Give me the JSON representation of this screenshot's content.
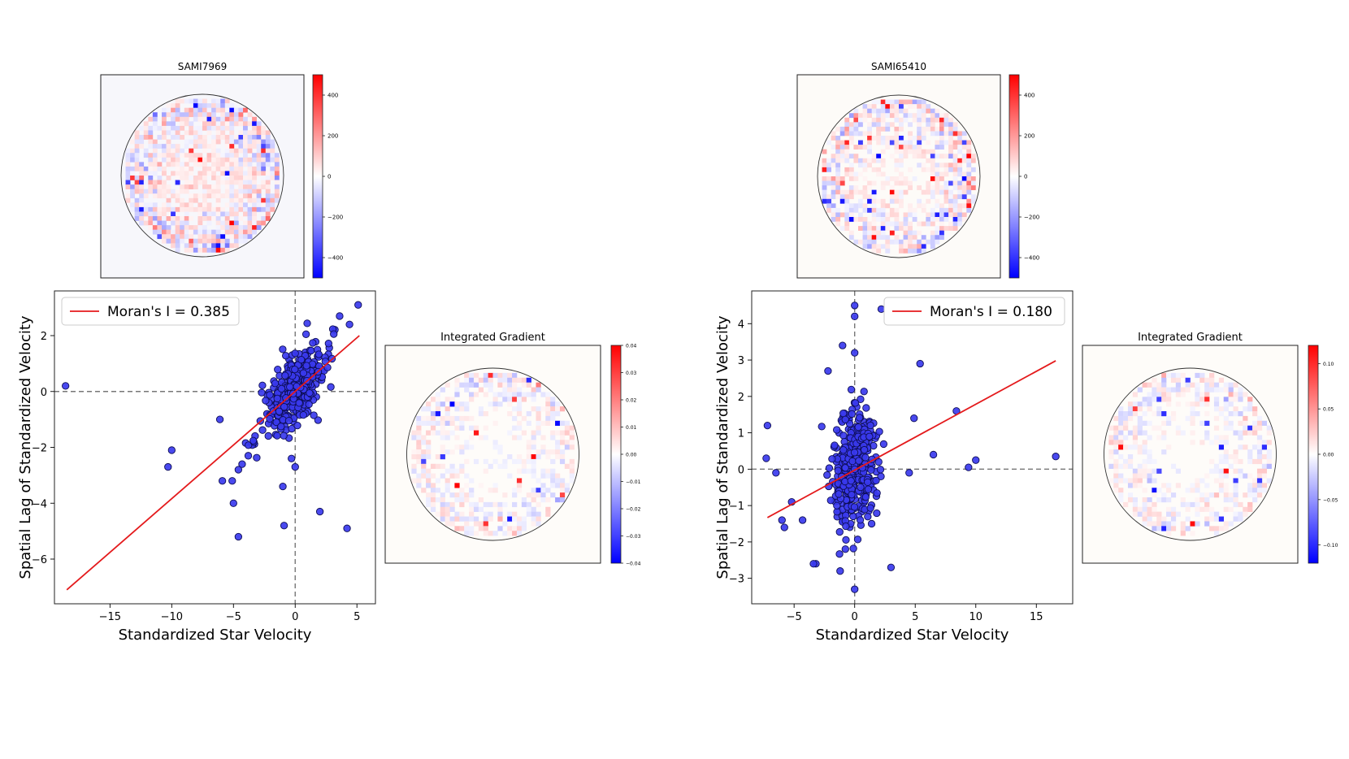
{
  "chart_data": [
    {
      "type": "heatmap",
      "id": "map1",
      "title": "SAMI7969",
      "colorbar": {
        "min": -500,
        "max": 500,
        "ticks": [
          400,
          200,
          0,
          -200,
          -400
        ],
        "tick_labels": [
          "400",
          "200",
          "0",
          "−200",
          "−400"
        ]
      },
      "colors": {
        "positive": "#ff0000",
        "negative": "#0000ff",
        "neutral": "#ffffff"
      }
    },
    {
      "type": "scatter",
      "id": "scatter1",
      "xlabel": "Standardized Star Velocity",
      "ylabel": "Spatial Lag of Standardized Velocity",
      "xlim": [
        -19.5,
        6.5
      ],
      "ylim": [
        -7.6,
        3.6
      ],
      "xticks": [
        -15,
        -10,
        -5,
        0,
        5
      ],
      "xtick_labels": [
        "−15",
        "−10",
        "−5",
        "0",
        "5"
      ],
      "yticks": [
        2,
        0,
        -2,
        -4,
        -6
      ],
      "ytick_labels": [
        "2",
        "0",
        "−2",
        "−4",
        "−6"
      ],
      "legend": {
        "label": "Moran's I = 0.385",
        "placement": "top-left"
      },
      "fit_line": {
        "x": [
          -18.5,
          5.2
        ],
        "y": [
          -7.1,
          2.0
        ]
      },
      "reference_lines": {
        "x": 0,
        "y": 0
      },
      "outliers": [
        {
          "x": -18.6,
          "y": 0.2
        },
        {
          "x": -10.0,
          "y": -2.1
        },
        {
          "x": -10.3,
          "y": -2.7
        },
        {
          "x": -6.1,
          "y": -1.0
        },
        {
          "x": -5.9,
          "y": -3.2
        },
        {
          "x": -5.1,
          "y": -3.2
        },
        {
          "x": -4.6,
          "y": -2.8
        },
        {
          "x": -4.3,
          "y": -2.6
        },
        {
          "x": -3.8,
          "y": -2.3
        },
        {
          "x": -5.0,
          "y": -4.0
        },
        {
          "x": -4.6,
          "y": -5.2
        },
        {
          "x": -0.9,
          "y": -4.8
        },
        {
          "x": 2.0,
          "y": -4.3
        },
        {
          "x": 4.2,
          "y": -4.9
        },
        {
          "x": 5.1,
          "y": 3.1
        },
        {
          "x": 4.4,
          "y": 2.4
        },
        {
          "x": 3.6,
          "y": 2.7
        },
        {
          "x": -1.0,
          "y": -3.4
        },
        {
          "x": 0.0,
          "y": -2.7
        },
        {
          "x": -0.3,
          "y": -2.4
        }
      ],
      "cluster": {
        "slope": 0.38,
        "intercept": 0.05,
        "count": 380,
        "x_spread": 1.3,
        "y_noise": 0.6
      },
      "marker": {
        "fill": "#3a3aee",
        "edge": "#0d0d55"
      }
    },
    {
      "type": "heatmap",
      "id": "grad1",
      "title": "Integrated Gradient",
      "colorbar": {
        "min": -0.04,
        "max": 0.04,
        "ticks": [
          0.04,
          0.03,
          0.02,
          0.01,
          0.0,
          -0.01,
          -0.02,
          -0.03,
          -0.04
        ],
        "tick_labels": [
          "0.04",
          "0.03",
          "0.02",
          "0.01",
          "0.00",
          "−0.01",
          "−0.02",
          "−0.03",
          "−0.04"
        ]
      },
      "colors": {
        "positive": "#ff0000",
        "negative": "#0000ff",
        "neutral": "#ffffff"
      }
    },
    {
      "type": "heatmap",
      "id": "map2",
      "title": "SAMI65410",
      "colorbar": {
        "min": -500,
        "max": 500,
        "ticks": [
          400,
          200,
          0,
          -200,
          -400
        ],
        "tick_labels": [
          "400",
          "200",
          "0",
          "−200",
          "−400"
        ]
      },
      "colors": {
        "positive": "#ff0000",
        "negative": "#0000ff",
        "neutral": "#ffffff"
      }
    },
    {
      "type": "scatter",
      "id": "scatter2",
      "xlabel": "Standardized Star Velocity",
      "ylabel": "Spatial Lag of Standardized Velocity",
      "xlim": [
        -8.5,
        18.0
      ],
      "ylim": [
        -3.7,
        4.9
      ],
      "xticks": [
        -5,
        0,
        5,
        10,
        15
      ],
      "xtick_labels": [
        "−5",
        "0",
        "5",
        "10",
        "15"
      ],
      "yticks": [
        4,
        3,
        2,
        1,
        0,
        -1,
        -2,
        -3
      ],
      "ytick_labels": [
        "4",
        "3",
        "2",
        "1",
        "0",
        "−1",
        "−2",
        "−3"
      ],
      "legend": {
        "label": "Moran's I = 0.180",
        "placement": "top-right"
      },
      "fit_line": {
        "x": [
          -7.2,
          16.6
        ],
        "y": [
          -1.33,
          2.98
        ]
      },
      "reference_lines": {
        "x": 0,
        "y": 0
      },
      "outliers": [
        {
          "x": -7.2,
          "y": 1.2
        },
        {
          "x": -7.3,
          "y": 0.3
        },
        {
          "x": -6.5,
          "y": -0.1
        },
        {
          "x": -6.0,
          "y": -1.4
        },
        {
          "x": -5.8,
          "y": -1.6
        },
        {
          "x": -5.2,
          "y": -0.9
        },
        {
          "x": -4.3,
          "y": -1.4
        },
        {
          "x": -3.2,
          "y": -2.6
        },
        {
          "x": -2.2,
          "y": 2.7
        },
        {
          "x": -1.0,
          "y": 3.4
        },
        {
          "x": 0.0,
          "y": 4.5
        },
        {
          "x": 0.0,
          "y": 4.2
        },
        {
          "x": 2.2,
          "y": 4.4
        },
        {
          "x": 0.0,
          "y": 3.2
        },
        {
          "x": 0.0,
          "y": -3.3
        },
        {
          "x": 3.0,
          "y": -2.7
        },
        {
          "x": 5.4,
          "y": 2.9
        },
        {
          "x": 4.9,
          "y": 1.4
        },
        {
          "x": 6.5,
          "y": 0.4
        },
        {
          "x": 8.4,
          "y": 1.6
        },
        {
          "x": 10.0,
          "y": 0.25
        },
        {
          "x": 9.4,
          "y": 0.05
        },
        {
          "x": 16.6,
          "y": 0.35
        },
        {
          "x": 4.5,
          "y": -0.1
        },
        {
          "x": -1.2,
          "y": -2.8
        },
        {
          "x": -3.4,
          "y": -2.6
        }
      ],
      "cluster": {
        "slope": 0.18,
        "intercept": 0.0,
        "count": 360,
        "x_spread": 0.9,
        "y_noise": 0.85
      },
      "marker": {
        "fill": "#3a3aee",
        "edge": "#0d0d55"
      }
    },
    {
      "type": "heatmap",
      "id": "grad2",
      "title": "Integrated Gradient",
      "colorbar": {
        "min": -0.12,
        "max": 0.12,
        "ticks": [
          0.1,
          0.05,
          0.0,
          -0.05,
          -0.1
        ],
        "tick_labels": [
          "0.10",
          "0.05",
          "0.00",
          "−0.05",
          "−0.10"
        ]
      },
      "colors": {
        "positive": "#ff0000",
        "negative": "#0000ff",
        "neutral": "#ffffff"
      }
    }
  ]
}
